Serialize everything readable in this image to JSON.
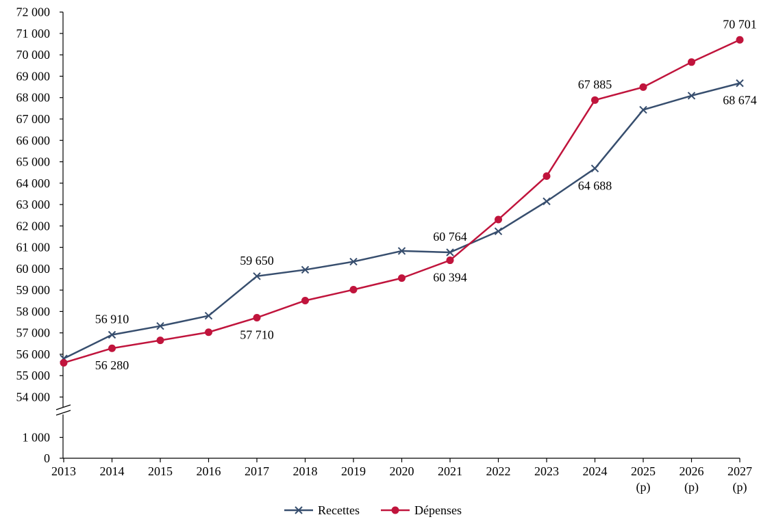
{
  "chart_data": {
    "type": "line",
    "title": "",
    "xlabel": "",
    "ylabel": "",
    "categories": [
      "2013",
      "2014",
      "2015",
      "2016",
      "2017",
      "2018",
      "2019",
      "2020",
      "2021",
      "2022",
      "2023",
      "2024",
      "2025",
      "2026",
      "2027"
    ],
    "category_suffix": [
      "",
      "",
      "",
      "",
      "",
      "",
      "",
      "",
      "",
      "",
      "",
      "",
      "(p)",
      "(p)",
      "(p)"
    ],
    "ylim": [
      0,
      72000
    ],
    "axis_break": {
      "between": [
        1000,
        54000
      ]
    },
    "y_ticks_lower": [
      {
        "value": 0,
        "label": "0"
      },
      {
        "value": 1000,
        "label": "1 000"
      }
    ],
    "y_ticks_upper": [
      {
        "value": 54000,
        "label": "54 000"
      },
      {
        "value": 55000,
        "label": "55 000"
      },
      {
        "value": 56000,
        "label": "56 000"
      },
      {
        "value": 57000,
        "label": "57 000"
      },
      {
        "value": 58000,
        "label": "58 000"
      },
      {
        "value": 59000,
        "label": "59 000"
      },
      {
        "value": 60000,
        "label": "60 000"
      },
      {
        "value": 61000,
        "label": "61 000"
      },
      {
        "value": 62000,
        "label": "62 000"
      },
      {
        "value": 63000,
        "label": "63 000"
      },
      {
        "value": 64000,
        "label": "64 000"
      },
      {
        "value": 65000,
        "label": "65 000"
      },
      {
        "value": 66000,
        "label": "66 000"
      },
      {
        "value": 67000,
        "label": "67 000"
      },
      {
        "value": 68000,
        "label": "68 000"
      },
      {
        "value": 69000,
        "label": "69 000"
      },
      {
        "value": 70000,
        "label": "70 000"
      },
      {
        "value": 71000,
        "label": "71 000"
      },
      {
        "value": 72000,
        "label": "72 000"
      }
    ],
    "series": [
      {
        "name": "Recettes",
        "color": "#374e6e",
        "marker": "cross",
        "values": [
          55800,
          56910,
          57320,
          57800,
          59650,
          59950,
          60330,
          60830,
          60764,
          61750,
          63150,
          64688,
          67430,
          68090,
          68674
        ]
      },
      {
        "name": "Dépenses",
        "color": "#c0143c",
        "marker": "circle",
        "values": [
          55600,
          56280,
          56650,
          57030,
          57710,
          58510,
          59020,
          59560,
          60394,
          62300,
          64330,
          67885,
          68490,
          69660,
          70701
        ]
      }
    ],
    "data_labels": [
      {
        "series": 0,
        "index": 1,
        "text": "56 910",
        "position": "above"
      },
      {
        "series": 1,
        "index": 1,
        "text": "56 280",
        "position": "below"
      },
      {
        "series": 0,
        "index": 4,
        "text": "59 650",
        "position": "above"
      },
      {
        "series": 1,
        "index": 4,
        "text": "57 710",
        "position": "below"
      },
      {
        "series": 0,
        "index": 8,
        "text": "60 764",
        "position": "above"
      },
      {
        "series": 1,
        "index": 8,
        "text": "60 394",
        "position": "below"
      },
      {
        "series": 1,
        "index": 11,
        "text": "67 885",
        "position": "above"
      },
      {
        "series": 0,
        "index": 11,
        "text": "64 688",
        "position": "below"
      },
      {
        "series": 1,
        "index": 14,
        "text": "70 701",
        "position": "above"
      },
      {
        "series": 0,
        "index": 14,
        "text": "68 674",
        "position": "below"
      }
    ],
    "legend": {
      "placement": "bottom-center"
    },
    "grid": false
  }
}
